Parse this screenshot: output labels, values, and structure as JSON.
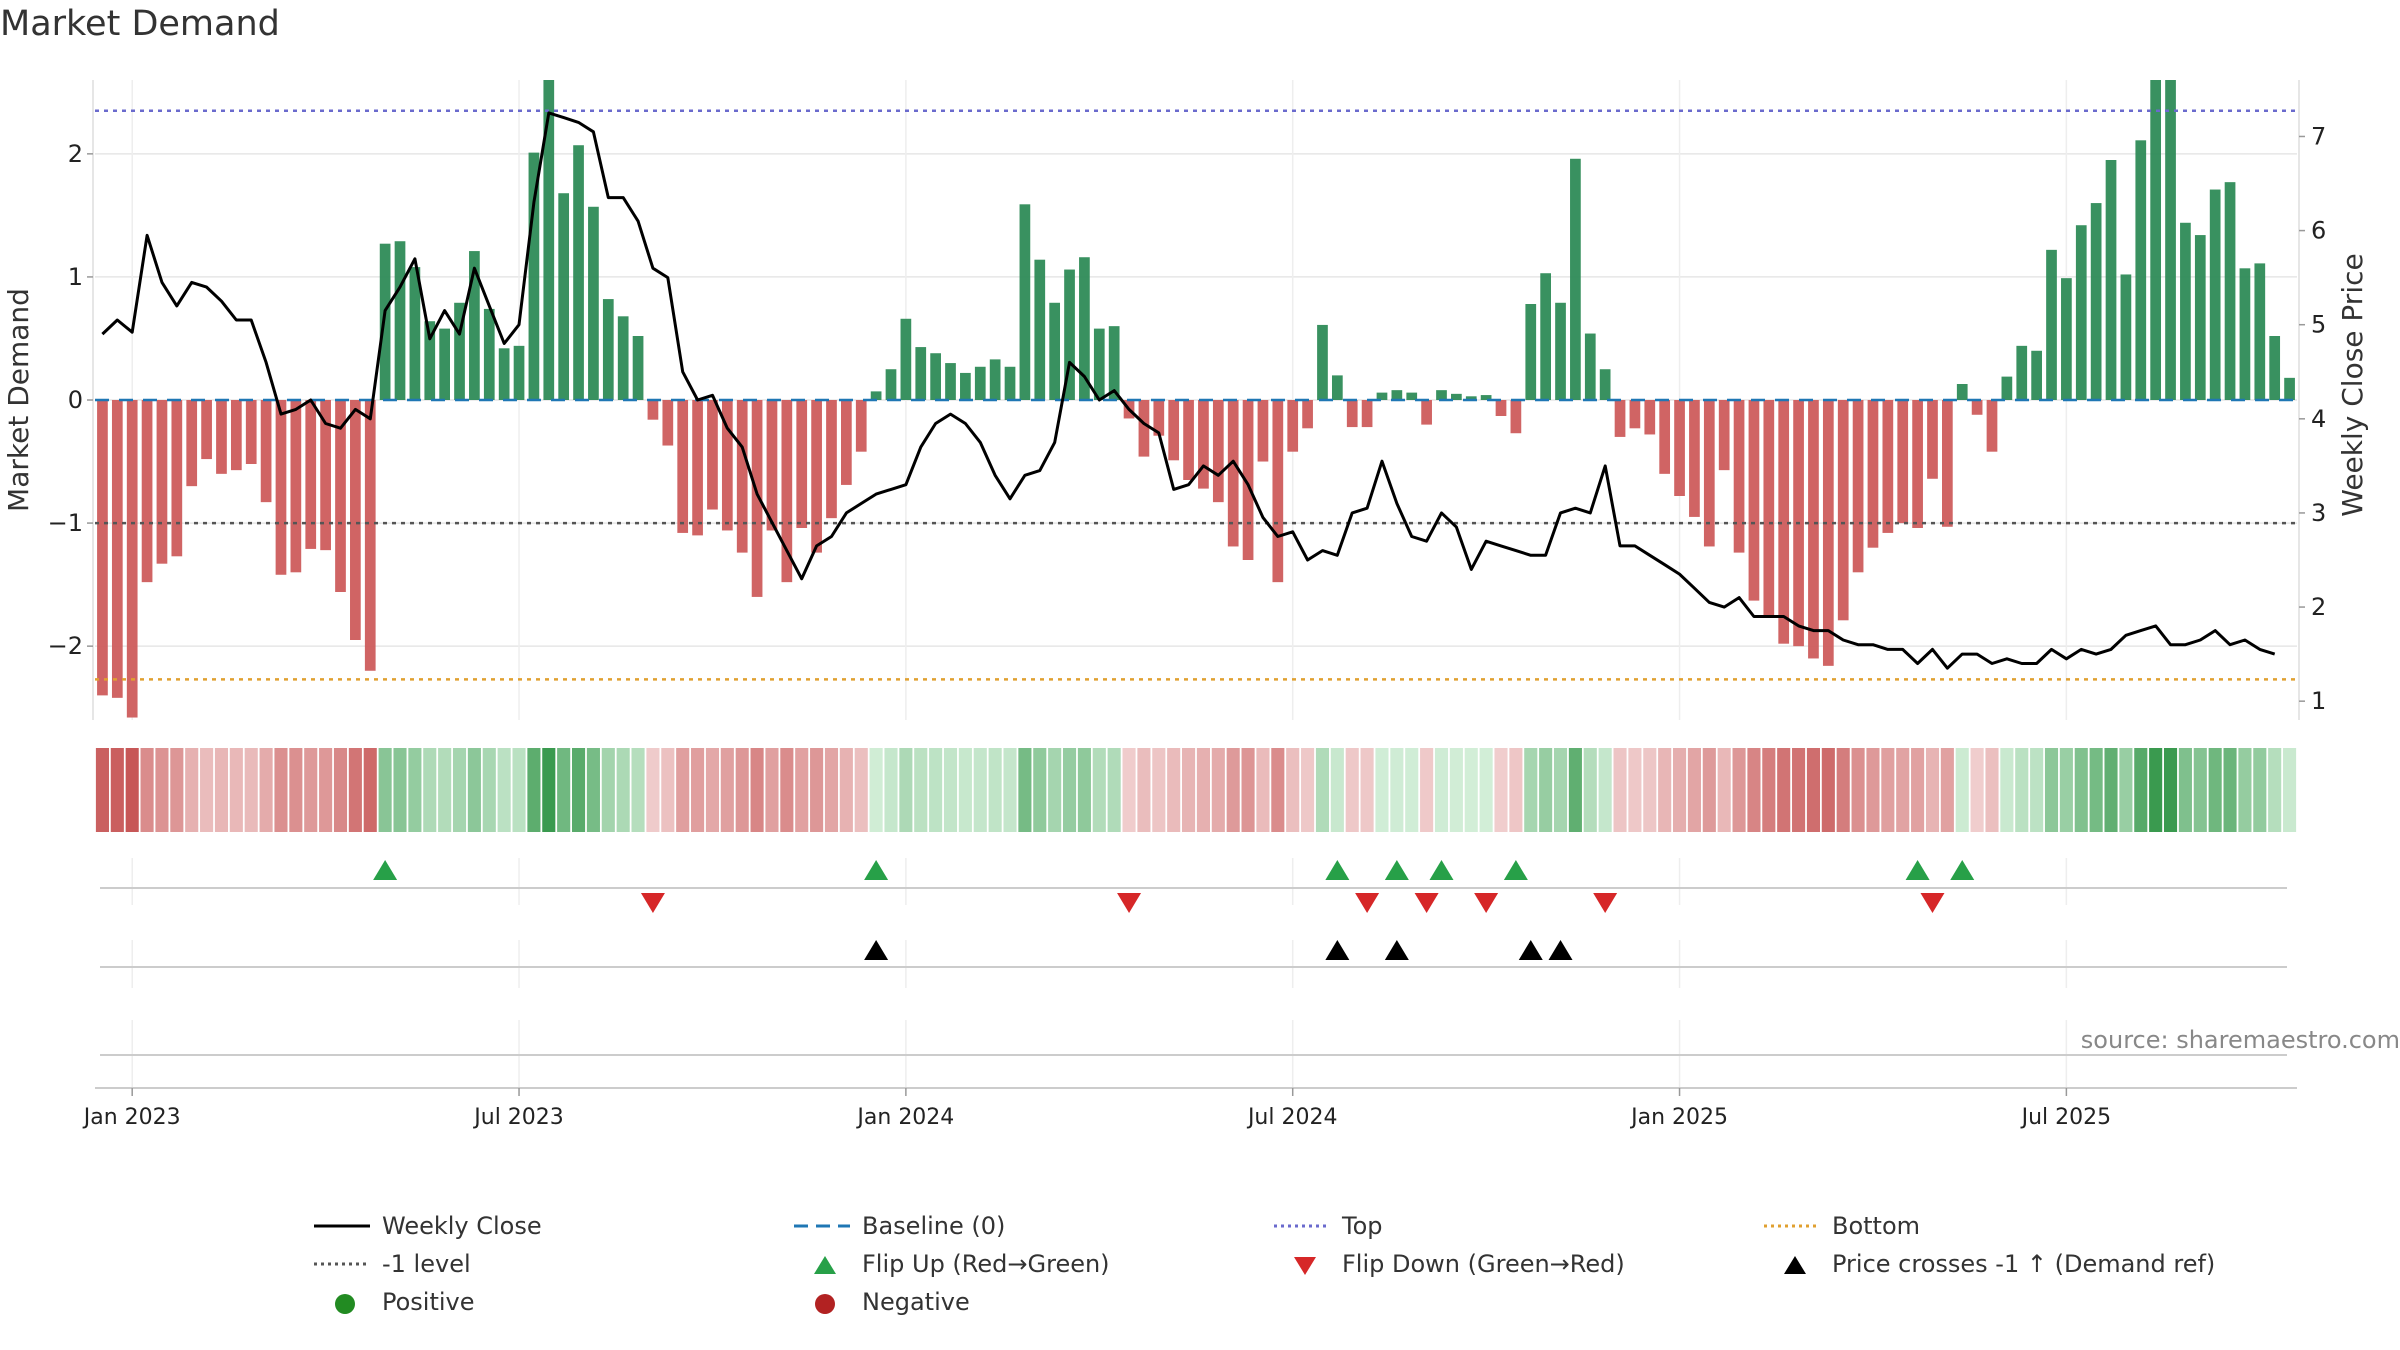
{
  "title": "Market Demand",
  "source": "source: sharemaestro.com",
  "chart_data": {
    "type": "bar",
    "title": "Market Demand",
    "ylabel": "Market Demand",
    "y2label": "Weekly Close Price",
    "ylim": [
      -2.6,
      2.6
    ],
    "y2lim": [
      0.8,
      7.6
    ],
    "yticks": [
      -2,
      -1,
      0,
      1,
      2
    ],
    "y2ticks": [
      1,
      2,
      3,
      4,
      5,
      6,
      7
    ],
    "ytick_labels": [
      "−2",
      "−1",
      "0",
      "1",
      "2"
    ],
    "y2tick_labels": [
      "1",
      "2",
      "3",
      "4",
      "5",
      "6",
      "7"
    ],
    "x_start": "2022-12-19",
    "xticks": [
      {
        "label": "Jan 2023",
        "week": 2
      },
      {
        "label": "Jul 2023",
        "week": 28
      },
      {
        "label": "Jan 2024",
        "week": 54
      },
      {
        "label": "Jul 2024",
        "week": 80
      },
      {
        "label": "Jan 2025",
        "week": 106
      },
      {
        "label": "Jul 2025",
        "week": 132
      }
    ],
    "reference_lines": {
      "baseline": 0,
      "minus_one": -1,
      "top": 2.35,
      "bottom": -2.27
    },
    "demand": [
      -2.4,
      -2.42,
      -2.58,
      -1.48,
      -1.33,
      -1.27,
      -0.7,
      -0.48,
      -0.6,
      -0.57,
      -0.52,
      -0.83,
      -1.42,
      -1.4,
      -1.21,
      -1.22,
      -1.56,
      -1.95,
      -2.2,
      1.27,
      1.29,
      1.08,
      0.64,
      0.58,
      0.79,
      1.21,
      0.74,
      0.42,
      0.44,
      2.01,
      2.6,
      1.68,
      2.07,
      1.57,
      0.82,
      0.68,
      0.52,
      -0.16,
      -0.37,
      -1.08,
      -1.1,
      -0.89,
      -1.06,
      -1.24,
      -1.6,
      -1.06,
      -1.48,
      -1.04,
      -1.24,
      -0.96,
      -0.69,
      -0.42,
      0.07,
      0.25,
      0.66,
      0.43,
      0.38,
      0.3,
      0.22,
      0.27,
      0.33,
      0.27,
      1.59,
      1.14,
      0.79,
      1.06,
      1.16,
      0.58,
      0.6,
      -0.15,
      -0.46,
      -0.29,
      -0.49,
      -0.65,
      -0.72,
      -0.83,
      -1.19,
      -1.3,
      -0.5,
      -1.48,
      -0.42,
      -0.23,
      0.61,
      0.2,
      -0.22,
      -0.22,
      0.06,
      0.08,
      0.06,
      -0.2,
      0.08,
      0.05,
      0.03,
      0.04,
      -0.13,
      -0.27,
      0.78,
      1.03,
      0.79,
      1.96,
      0.54,
      0.25,
      -0.3,
      -0.23,
      -0.28,
      -0.6,
      -0.78,
      -0.95,
      -1.19,
      -0.57,
      -1.24,
      -1.63,
      -1.77,
      -1.98,
      -2.0,
      -2.1,
      -2.16,
      -1.79,
      -1.4,
      -1.2,
      -1.08,
      -1.0,
      -1.04,
      -0.64,
      -1.03,
      0.13,
      -0.12,
      -0.42,
      0.19,
      0.44,
      0.4,
      1.22,
      0.99,
      1.42,
      1.6,
      1.95,
      1.02,
      2.11,
      2.6,
      2.6,
      1.44,
      1.34,
      1.71,
      1.77,
      1.07,
      1.11,
      0.52,
      0.18
    ],
    "close": [
      4.9,
      5.05,
      4.92,
      5.95,
      5.45,
      5.2,
      5.45,
      5.4,
      5.25,
      5.05,
      5.05,
      4.6,
      4.05,
      4.1,
      4.2,
      3.95,
      3.9,
      4.1,
      4.0,
      5.15,
      5.4,
      5.7,
      4.85,
      5.15,
      4.9,
      5.6,
      5.2,
      4.8,
      5.0,
      6.3,
      7.25,
      7.2,
      7.15,
      7.05,
      6.35,
      6.35,
      6.1,
      5.6,
      5.5,
      4.5,
      4.2,
      4.25,
      3.9,
      3.7,
      3.2,
      2.9,
      2.6,
      2.3,
      2.65,
      2.75,
      3.0,
      3.1,
      3.2,
      3.25,
      3.3,
      3.7,
      3.95,
      4.05,
      3.95,
      3.75,
      3.4,
      3.15,
      3.4,
      3.45,
      3.75,
      4.6,
      4.45,
      4.2,
      4.3,
      4.1,
      3.95,
      3.85,
      3.25,
      3.3,
      3.5,
      3.4,
      3.55,
      3.3,
      2.95,
      2.75,
      2.8,
      2.5,
      2.6,
      2.55,
      3.0,
      3.05,
      3.55,
      3.1,
      2.75,
      2.7,
      3.0,
      2.85,
      2.4,
      2.7,
      2.65,
      2.6,
      2.55,
      2.55,
      3.0,
      3.05,
      3.0,
      3.5,
      2.65,
      2.65,
      2.55,
      2.45,
      2.35,
      2.2,
      2.05,
      2.0,
      2.1,
      1.9,
      1.9,
      1.9,
      1.8,
      1.75,
      1.75,
      1.65,
      1.6,
      1.6,
      1.55,
      1.55,
      1.4,
      1.55,
      1.35,
      1.5,
      1.5,
      1.4,
      1.45,
      1.4,
      1.4,
      1.55,
      1.45,
      1.55,
      1.5,
      1.55,
      1.7,
      1.75,
      1.8,
      1.6,
      1.6,
      1.65,
      1.75,
      1.6,
      1.65,
      1.55,
      1.5
    ],
    "flip_up_weeks": [
      19,
      52,
      83,
      87,
      90,
      95,
      122,
      125
    ],
    "flip_down_weeks": [
      37,
      69,
      85,
      89,
      93,
      101,
      123
    ],
    "price_cross_weeks": [
      52,
      83,
      87,
      96,
      98
    ]
  },
  "legend": [
    {
      "label": "Weekly Close",
      "style": "line",
      "color": "#000000",
      "dash": "",
      "col": 0,
      "row": 0
    },
    {
      "label": "Baseline (0)",
      "style": "line",
      "color": "#1f77b4",
      "dash": "14 8",
      "col": 1,
      "row": 0
    },
    {
      "label": "Top",
      "style": "line",
      "color": "#6a6acd",
      "dash": "3 4",
      "col": 2,
      "row": 0
    },
    {
      "label": "Bottom",
      "style": "line",
      "color": "#e0a030",
      "dash": "3 4",
      "col": 3,
      "row": 0
    },
    {
      "label": "-1 level",
      "style": "line",
      "color": "#555555",
      "dash": "3 4",
      "col": 0,
      "row": 1
    },
    {
      "label": "Flip Up (Red→Green)",
      "style": "tri-up",
      "color": "#27a048",
      "col": 1,
      "row": 1
    },
    {
      "label": "Flip Down (Green→Red)",
      "style": "tri-down",
      "color": "#d62728",
      "col": 2,
      "row": 1
    },
    {
      "label": "Price crosses -1 ↑ (Demand ref)",
      "style": "tri-up",
      "color": "#000000",
      "col": 3,
      "row": 1
    },
    {
      "label": "Positive",
      "style": "dot",
      "color": "#228b22",
      "col": 0,
      "row": 2
    },
    {
      "label": "Negative",
      "style": "dot",
      "color": "#b22222",
      "col": 1,
      "row": 2
    }
  ],
  "colors": {
    "positive_bar": "#2e8b57",
    "negative_bar": "#cd5c5c",
    "close_line": "#000000",
    "baseline": "#1f77b4",
    "top_line": "#6a6acd",
    "bottom_line": "#e0a030",
    "minus_one_line": "#555555",
    "flip_up": "#27a048",
    "flip_down": "#d62728",
    "price_cross": "#000000",
    "grid": "#e6e6e6"
  }
}
